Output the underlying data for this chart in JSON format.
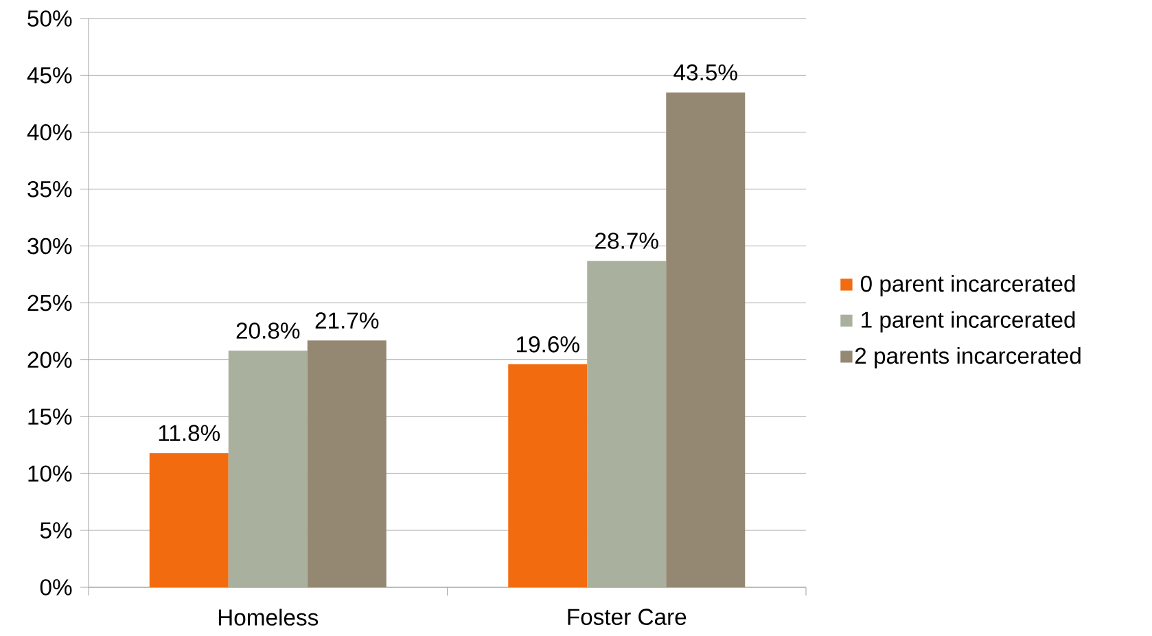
{
  "chart_data": {
    "type": "bar",
    "categories": [
      "Homeless",
      "Foster Care"
    ],
    "series": [
      {
        "name": "0 parent incarcerated",
        "color": "#f26b0f",
        "values": [
          11.8,
          19.6
        ],
        "value_labels": [
          "11.8%",
          "19.6%"
        ]
      },
      {
        "name": "1 parent incarcerated",
        "color": "#a9b09e",
        "values": [
          20.8,
          28.7
        ],
        "value_labels": [
          "20.8%",
          "28.7%"
        ]
      },
      {
        "name": "2 parents incarcerated",
        "color": "#958872",
        "values": [
          21.7,
          43.5
        ],
        "value_labels": [
          "21.7%",
          "43.5%"
        ]
      }
    ],
    "ylim": [
      0,
      50
    ],
    "yticks": [
      {
        "value": 0,
        "label": "0%"
      },
      {
        "value": 5,
        "label": "5%"
      },
      {
        "value": 10,
        "label": "10%"
      },
      {
        "value": 15,
        "label": "15%"
      },
      {
        "value": 20,
        "label": "20%"
      },
      {
        "value": 25,
        "label": "25%"
      },
      {
        "value": 30,
        "label": "30%"
      },
      {
        "value": 35,
        "label": "35%"
      },
      {
        "value": 40,
        "label": "40%"
      },
      {
        "value": 45,
        "label": "45%"
      },
      {
        "value": 50,
        "label": "50%"
      }
    ],
    "grid": "y",
    "legend": "right"
  }
}
